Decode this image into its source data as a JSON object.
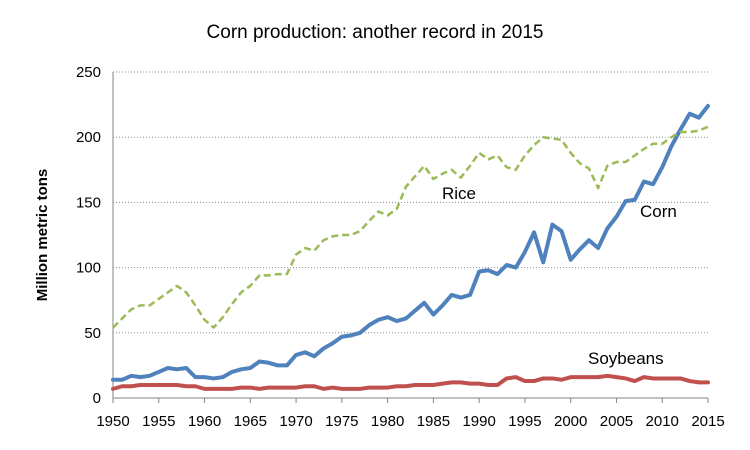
{
  "chart_data": {
    "type": "line",
    "title": "Corn production: another record in 2015",
    "xlabel": "",
    "ylabel": "Million metric tons",
    "ylim": [
      0,
      250
    ],
    "yticks": [
      0,
      50,
      100,
      150,
      200,
      250
    ],
    "xlim": [
      1950,
      2015
    ],
    "xticks": [
      1950,
      1955,
      1960,
      1965,
      1970,
      1975,
      1980,
      1985,
      1990,
      1995,
      2000,
      2005,
      2010,
      2015
    ],
    "grid": true,
    "x": [
      1950,
      1951,
      1952,
      1953,
      1954,
      1955,
      1956,
      1957,
      1958,
      1959,
      1960,
      1961,
      1962,
      1963,
      1964,
      1965,
      1966,
      1967,
      1968,
      1969,
      1970,
      1971,
      1972,
      1973,
      1974,
      1975,
      1976,
      1977,
      1978,
      1979,
      1980,
      1981,
      1982,
      1983,
      1984,
      1985,
      1986,
      1987,
      1988,
      1989,
      1990,
      1991,
      1992,
      1993,
      1994,
      1995,
      1996,
      1997,
      1998,
      1999,
      2000,
      2001,
      2002,
      2003,
      2004,
      2005,
      2006,
      2007,
      2008,
      2009,
      2010,
      2011,
      2012,
      2013,
      2014,
      2015
    ],
    "series": [
      {
        "name": "Corn",
        "color": "#4f81bd",
        "style": "solid",
        "values": [
          14,
          14,
          17,
          16,
          17,
          20,
          23,
          22,
          23,
          16,
          16,
          15,
          16,
          20,
          22,
          23,
          28,
          27,
          25,
          25,
          33,
          35,
          32,
          38,
          42,
          47,
          48,
          50,
          56,
          60,
          62,
          59,
          61,
          67,
          73,
          64,
          71,
          79,
          77,
          79,
          97,
          98,
          95,
          102,
          100,
          112,
          127,
          104,
          133,
          128,
          106,
          114,
          121,
          115,
          130,
          139,
          151,
          152,
          166,
          164,
          177,
          193,
          206,
          218,
          215,
          224
        ]
      },
      {
        "name": "Rice",
        "color": "#9bbb59",
        "style": "dashed",
        "values": [
          54,
          61,
          68,
          71,
          71,
          76,
          81,
          86,
          81,
          71,
          60,
          54,
          62,
          72,
          81,
          86,
          94,
          94,
          95,
          95,
          110,
          115,
          113,
          121,
          124,
          125,
          125,
          128,
          136,
          143,
          140,
          145,
          162,
          170,
          178,
          168,
          172,
          175,
          169,
          178,
          188,
          183,
          186,
          177,
          175,
          186,
          194,
          200,
          199,
          198,
          188,
          180,
          176,
          161,
          178,
          181,
          181,
          186,
          191,
          195,
          195,
          200,
          204,
          204,
          205,
          208
        ]
      },
      {
        "name": "Soybeans",
        "color": "#c0504d",
        "style": "solid",
        "values": [
          7,
          9,
          9,
          10,
          10,
          10,
          10,
          10,
          9,
          9,
          7,
          7,
          7,
          7,
          8,
          8,
          7,
          8,
          8,
          8,
          8,
          9,
          9,
          7,
          8,
          7,
          7,
          7,
          8,
          8,
          8,
          9,
          9,
          10,
          10,
          10,
          11,
          12,
          12,
          11,
          11,
          10,
          10,
          15,
          16,
          13,
          13,
          15,
          15,
          14,
          16,
          16,
          16,
          16,
          17,
          16,
          15,
          13,
          16,
          15,
          15,
          15,
          15,
          13,
          12,
          12
        ]
      }
    ],
    "annotations": [
      "Rice",
      "Corn",
      "Soybeans"
    ]
  }
}
